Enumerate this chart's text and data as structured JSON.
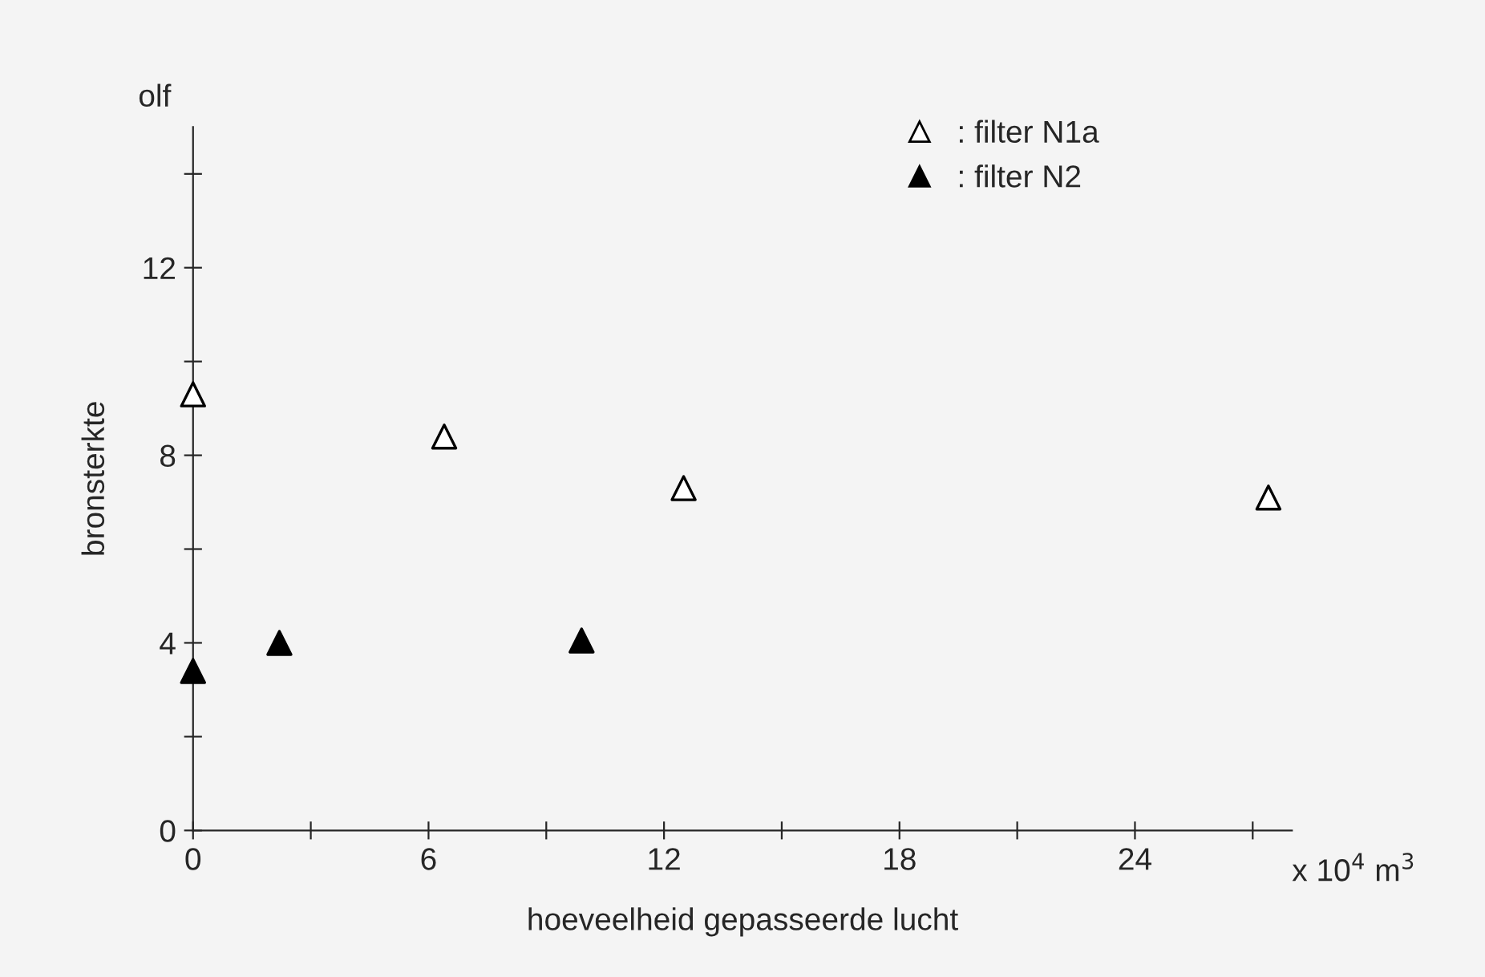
{
  "chart_data": {
    "type": "scatter",
    "xlabel": "hoeveelheid gepasseerde lucht",
    "ylabel": "bronsterkte",
    "annotations": [
      "olf",
      "x 10$^{4}$ m$^{3}$"
    ],
    "series": [
      {
        "name": ": filter N1a",
        "color": "#000000",
        "marker": "triangle_open",
        "x": [
          0,
          6.4,
          12.5,
          27.4
        ],
        "values": [
          9.3,
          8.4,
          7.3,
          7.1
        ]
      },
      {
        "name": ": filter N2",
        "color": "#000000",
        "marker": "triangle",
        "x": [
          0,
          2.2,
          9.9
        ],
        "values": [
          3.4,
          4.0,
          4.05
        ]
      }
    ],
    "xlim": [
      0,
      28
    ],
    "ylim": [
      0,
      15
    ],
    "xticks": [
      0,
      6,
      12,
      18,
      24,
      {
        "value": 3,
        "label": null
      },
      {
        "value": 9,
        "label": null
      },
      {
        "value": 15,
        "label": null
      },
      {
        "value": 21,
        "label": null
      },
      {
        "value": 27,
        "label": null
      }
    ],
    "yticks": [
      0,
      4,
      8,
      12,
      {
        "value": 2,
        "label": null
      },
      {
        "value": 6,
        "label": null
      },
      {
        "value": 10,
        "label": null
      },
      {
        "value": 14,
        "label": null
      }
    ],
    "grid": false,
    "legend": "top right"
  }
}
